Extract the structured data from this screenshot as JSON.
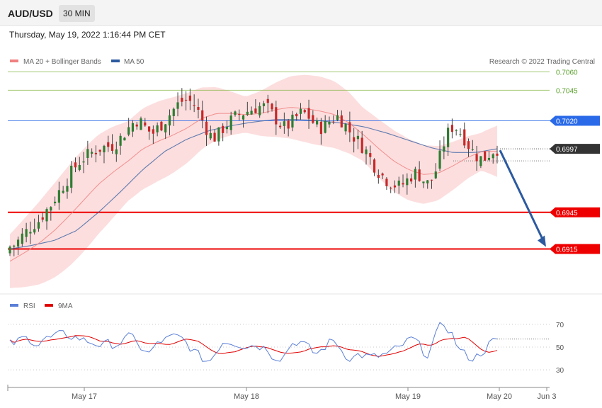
{
  "header": {
    "symbol": "AUD/USD",
    "timeframe": "30 MIN"
  },
  "timestamp": "Thursday, May 19, 2022 1:16:44 PM CET",
  "legend": {
    "ma20": {
      "label": "MA 20 + Bollinger Bands",
      "color": "#f08080"
    },
    "ma50": {
      "label": "MA 50",
      "color": "#2c5aa0"
    }
  },
  "credit": "Research © 2022 Trading Central",
  "rsi_legend": {
    "rsi": {
      "label": "RSI",
      "color": "#5b7fd6"
    },
    "ma9": {
      "label": "9MA",
      "color": "#e00000"
    }
  },
  "chart_data": {
    "type": "candlestick",
    "price_range": [
      0.6884,
      0.708
    ],
    "last_price": {
      "label": "0.6997",
      "value": 0.6997,
      "color": "#333333"
    },
    "levels": [
      {
        "label": "0.7060",
        "value": 0.706,
        "color": "#8ab84a",
        "kind": "resistance"
      },
      {
        "label": "0.7045",
        "value": 0.7045,
        "color": "#8ab84a",
        "kind": "resistance"
      },
      {
        "label": "0.7020",
        "value": 0.702,
        "color": "#2a6ae8",
        "kind": "pivot"
      },
      {
        "label": "0.6945",
        "value": 0.6945,
        "color": "#ee0000",
        "kind": "support"
      },
      {
        "label": "0.6915",
        "value": 0.6915,
        "color": "#ee0000",
        "kind": "support"
      }
    ],
    "forecast_arrow": {
      "from": 0.6997,
      "to": 0.6915,
      "color": "#2c5aa0"
    },
    "x_ticks": [
      "May 17",
      "May 18",
      "May 19",
      "May 20",
      "Jun 3"
    ],
    "close_path": [
      0.6917,
      0.6919,
      0.6925,
      0.693,
      0.6935,
      0.6938,
      0.6945,
      0.695,
      0.6958,
      0.6965,
      0.6972,
      0.698,
      0.6986,
      0.699,
      0.6993,
      0.6996,
      0.6998,
      0.6999,
      0.7,
      0.7004,
      0.701,
      0.7016,
      0.7021,
      0.7018,
      0.7012,
      0.701,
      0.7015,
      0.702,
      0.7026,
      0.7032,
      0.7036,
      0.7037,
      0.7034,
      0.7026,
      0.7016,
      0.7008,
      0.7006,
      0.7013,
      0.7018,
      0.7022,
      0.7025,
      0.7027,
      0.7029,
      0.7031,
      0.7032,
      0.703,
      0.7024,
      0.7018,
      0.7014,
      0.7018,
      0.7023,
      0.7027,
      0.7024,
      0.7018,
      0.7014,
      0.7016,
      0.7021,
      0.7024,
      0.702,
      0.7013,
      0.7007,
      0.7002,
      0.6996,
      0.6988,
      0.698,
      0.6975,
      0.697,
      0.6968,
      0.6966,
      0.697,
      0.6975,
      0.6978,
      0.6972,
      0.6968,
      0.6975,
      0.699,
      0.7006,
      0.7015,
      0.7014,
      0.7008,
      0.7,
      0.6993,
      0.6989,
      0.699,
      0.6995,
      0.6997
    ],
    "ma20_path": [
      0.6905,
      0.6912,
      0.692,
      0.693,
      0.6942,
      0.6955,
      0.6968,
      0.6978,
      0.6987,
      0.6997,
      0.7003,
      0.7008,
      0.7014,
      0.7022,
      0.7026,
      0.7026,
      0.7025,
      0.7026,
      0.7029,
      0.7031,
      0.703,
      0.7028,
      0.7025,
      0.7018,
      0.7008,
      0.6997,
      0.6987,
      0.698,
      0.6976,
      0.6977,
      0.6983,
      0.699,
      0.6995,
      0.6995
    ],
    "ma50_path": [
      0.6915,
      0.6918,
      0.6922,
      0.693,
      0.6945,
      0.6962,
      0.698,
      0.6995,
      0.7005,
      0.7012,
      0.7016,
      0.7019,
      0.7021,
      0.7021,
      0.702,
      0.7018,
      0.7015,
      0.701,
      0.7004,
      0.6998,
      0.6994,
      0.6994,
      0.6997
    ]
  },
  "rsi_data": {
    "type": "line",
    "levels": [
      {
        "label": "70",
        "value": 70
      },
      {
        "label": "50",
        "value": 50
      },
      {
        "label": "30",
        "value": 30
      }
    ],
    "range": [
      22,
      78
    ]
  }
}
